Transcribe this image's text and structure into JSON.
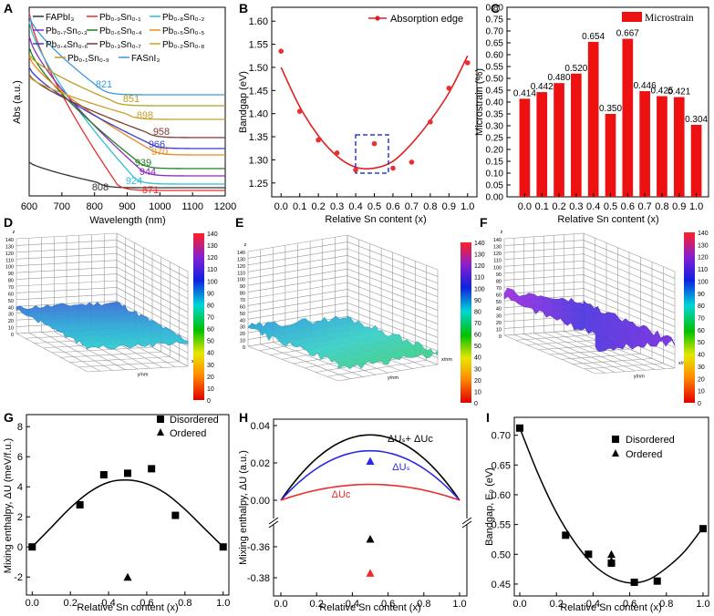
{
  "panel_labels": [
    "A",
    "B",
    "C",
    "D",
    "E",
    "F",
    "G",
    "H",
    "I"
  ],
  "colors": {
    "red": "#ef2a2a",
    "blue": "#2a2ae0",
    "bar_red": "#ee1111",
    "series_A": [
      "#333333",
      "#e4312b",
      "#2fbfd2",
      "#8a2bbd",
      "#1f7f1f",
      "#e88a1e",
      "#3a3ad1",
      "#7a3b2e",
      "#c8a12a",
      "#b8a021",
      "#3b9ad9"
    ]
  },
  "chart_data": [
    {
      "id": "A",
      "type": "line",
      "xlabel": "Wavelength (nm)",
      "ylabel": "Abs (a.u.)",
      "xlim": [
        600,
        1200
      ],
      "xticks": [
        "600",
        "700",
        "800",
        "900",
        "1000",
        "1100",
        "1200"
      ],
      "legend": [
        "FAPbI₃",
        "Pb₀.₉Sn₀.₁",
        "Pb₀.₈Sn₀.₂",
        "Pb₀.₇Sn₀.₃",
        "Pb₀.₆Sn₀.₄",
        "Pb₀.₅Sn₀.₅",
        "Pb₀.₄Sn₀.₆",
        "Pb₀.₃Sn₀.₇",
        "Pb₀.₂Sn₀.₈",
        "Pb₀.₁Sn₀.₉",
        "FASnI₃"
      ],
      "edges": [
        "808",
        "871",
        "924",
        "944",
        "939",
        "970",
        "966",
        "958",
        "898",
        "851",
        "821"
      ]
    },
    {
      "id": "B",
      "type": "scatter",
      "xlabel": "Relative Sn content (x)",
      "ylabel": "Bandgap (eV)",
      "legend": "Absorption edge",
      "xlim": [
        -0.05,
        1.05
      ],
      "ylim": [
        1.22,
        1.63
      ],
      "xticks": [
        "0.0",
        "0.1",
        "0.2",
        "0.3",
        "0.4",
        "0.5",
        "0.6",
        "0.7",
        "0.8",
        "0.9",
        "1.0"
      ],
      "yticks": [
        "1.25",
        "1.30",
        "1.35",
        "1.40",
        "1.45",
        "1.50",
        "1.55",
        "1.60"
      ],
      "x": [
        0.0,
        0.1,
        0.2,
        0.3,
        0.4,
        0.5,
        0.6,
        0.7,
        0.8,
        0.9,
        1.0
      ],
      "y": [
        1.535,
        1.405,
        1.343,
        1.315,
        1.278,
        1.335,
        1.282,
        1.295,
        1.382,
        1.455,
        1.51
      ],
      "fit_x": [
        0.0,
        0.1,
        0.2,
        0.3,
        0.4,
        0.5,
        0.6,
        0.7,
        0.8,
        0.9,
        1.0
      ],
      "fit_y": [
        1.5,
        1.415,
        1.352,
        1.308,
        1.284,
        1.282,
        1.297,
        1.335,
        1.385,
        1.445,
        1.525
      ]
    },
    {
      "id": "C",
      "type": "bar",
      "xlabel": "Relative Sn content (x)",
      "ylabel": "Microstrain (%)",
      "legend": "Microstrain",
      "categories": [
        "0.0",
        "0.1",
        "0.2",
        "0.3",
        "0.4",
        "0.5",
        "0.6",
        "0.7",
        "0.8",
        "0.9",
        "1.0"
      ],
      "values": [
        0.414,
        0.442,
        0.48,
        0.52,
        0.654,
        0.35,
        0.667,
        0.446,
        0.425,
        0.421,
        0.304
      ],
      "labels": [
        "0.414",
        "0.442",
        "0.480",
        "0.520",
        "0.654",
        "0.350",
        "0.667",
        "0.446",
        "0.425",
        "0.421",
        "0.304"
      ],
      "ylim": [
        0,
        0.8
      ],
      "yticks": [
        "0.00",
        "0.05",
        "0.10",
        "0.15",
        "0.20",
        "0.25",
        "0.30",
        "0.35",
        "0.40",
        "0.45",
        "0.50",
        "0.55",
        "0.60",
        "0.65",
        "0.70",
        "0.75",
        "0.80"
      ]
    },
    {
      "id": "G",
      "type": "scatter",
      "xlabel": "Relative Sn content (x)",
      "ylabel": "Mixing enthalpy, ΔU (meV/f.u.)",
      "legend": [
        "Disordered",
        "Ordered"
      ],
      "xlim": [
        -0.03,
        1.03
      ],
      "ylim": [
        -3.2,
        8.8
      ],
      "xticks": [
        "0.0",
        "0.2",
        "0.4",
        "0.6",
        "0.8",
        "1.0"
      ],
      "yticks": [
        "-2",
        "0",
        "2",
        "4",
        "6",
        "8"
      ],
      "disordered_x": [
        0.0,
        0.25,
        0.375,
        0.5,
        0.625,
        0.75,
        1.0
      ],
      "disordered_y": [
        0.0,
        2.8,
        4.8,
        4.9,
        5.2,
        2.1,
        0.0
      ],
      "ordered_x": [
        0.5
      ],
      "ordered_y": [
        -2.0
      ],
      "fit_x": [
        0.0,
        0.1,
        0.2,
        0.3,
        0.4,
        0.5,
        0.6,
        0.7,
        0.8,
        0.9,
        1.0
      ],
      "fit_y": [
        0.0,
        1.3,
        2.6,
        3.65,
        4.3,
        4.45,
        4.2,
        3.55,
        2.5,
        1.25,
        0.0
      ]
    },
    {
      "id": "H",
      "type": "line",
      "xlabel": "Relative Sn content (x)",
      "ylabel": "Mixing enthalpy, ΔU (a.u.)",
      "xticks": [
        "0.0",
        "0.2",
        "0.4",
        "0.6",
        "0.8",
        "1.0"
      ],
      "yticks_upper": [
        "0.00",
        "0.02",
        "0.04"
      ],
      "yticks_lower": [
        "-0.36",
        "-0.38"
      ],
      "series": [
        {
          "name": "ΔUₛ + ΔUᴄ",
          "peak": 0.035
        },
        {
          "name": "ΔUₛ",
          "peak": 0.0265
        },
        {
          "name": "ΔUᴄ",
          "peak": 0.0085
        }
      ],
      "label_total": "ΔUₛ+ ΔUᴄ",
      "label_s": "ΔUₛ",
      "label_c": "ΔUᴄ",
      "triangles": [
        {
          "x": 0.5,
          "y": 0.021,
          "color": "blue"
        },
        {
          "x": 0.5,
          "y": -0.355,
          "color": "black"
        },
        {
          "x": 0.5,
          "y": -0.377,
          "color": "red"
        }
      ]
    },
    {
      "id": "I",
      "type": "scatter",
      "xlabel": "Relative Sn content (x)",
      "ylabel": "Bandgap, E₉ (eV)",
      "legend": [
        "Disordered",
        "Ordered"
      ],
      "xlim": [
        -0.03,
        1.03
      ],
      "ylim": [
        0.43,
        0.73
      ],
      "xticks": [
        "0.0",
        "0.2",
        "0.4",
        "0.6",
        "0.8",
        "1.0"
      ],
      "yticks": [
        "0.45",
        "0.50",
        "0.55",
        "0.60",
        "0.65",
        "0.70"
      ],
      "disordered_x": [
        0.0,
        0.25,
        0.375,
        0.5,
        0.625,
        0.75,
        1.0
      ],
      "disordered_y": [
        0.712,
        0.532,
        0.5,
        0.485,
        0.453,
        0.455,
        0.543
      ],
      "ordered_x": [
        0.5,
        0.5
      ],
      "ordered_y": [
        0.5,
        0.489
      ],
      "fit_x": [
        0.0,
        0.1,
        0.2,
        0.3,
        0.4,
        0.5,
        0.6,
        0.7,
        0.8,
        0.9,
        1.0
      ],
      "fit_y": [
        0.712,
        0.635,
        0.57,
        0.52,
        0.483,
        0.461,
        0.452,
        0.457,
        0.477,
        0.505,
        0.545
      ]
    }
  ],
  "surface_panels": [
    {
      "id": "D",
      "zlabel": "z",
      "xlabel": "x/nm",
      "ylabel": "y/nm",
      "zticks": [
        "0",
        "10",
        "20",
        "30",
        "40",
        "50",
        "60",
        "70",
        "80",
        "90",
        "100",
        "110",
        "120",
        "130",
        "140"
      ],
      "colorbar_ticks": [
        "0",
        "10",
        "20",
        "30",
        "40",
        "50",
        "60",
        "70",
        "80",
        "90",
        "100",
        "110",
        "120",
        "130",
        "140"
      ]
    },
    {
      "id": "E",
      "zlabel": "z",
      "xlabel": "x/nm",
      "ylabel": "y/nm",
      "zticks": [
        "0",
        "10",
        "20",
        "30",
        "40",
        "50",
        "60",
        "70",
        "80",
        "90",
        "100",
        "110",
        "120",
        "130",
        "140"
      ],
      "colorbar_ticks": [
        "0",
        "10",
        "20",
        "30",
        "40",
        "50",
        "60",
        "70",
        "80",
        "90",
        "100",
        "110",
        "120",
        "130",
        "140"
      ]
    },
    {
      "id": "F",
      "zlabel": "z",
      "xlabel": "x/nm",
      "ylabel": "y/nm",
      "zticks": [
        "0",
        "10",
        "20",
        "30",
        "40",
        "50",
        "60",
        "70",
        "80",
        "90",
        "100",
        "110",
        "120",
        "130",
        "140"
      ],
      "colorbar_ticks": [
        "0",
        "10",
        "20",
        "30",
        "40",
        "50",
        "60",
        "70",
        "80",
        "90",
        "100",
        "110",
        "120",
        "130",
        "140"
      ]
    }
  ]
}
